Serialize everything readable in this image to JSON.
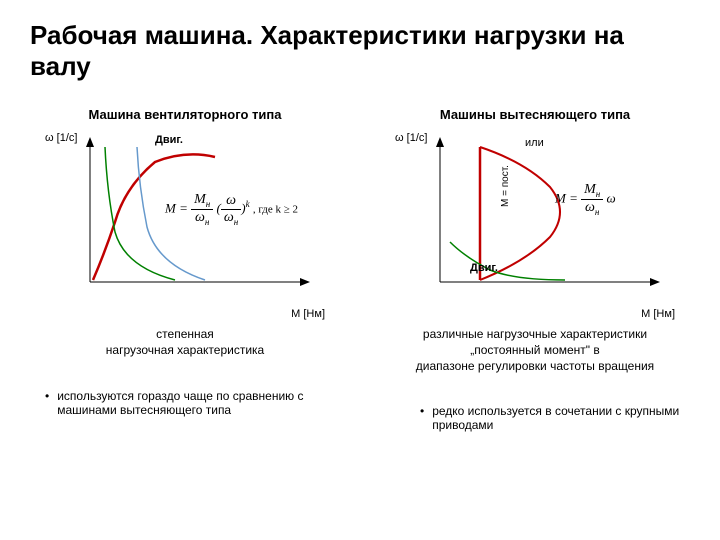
{
  "title": "Рабочая машина. Характеристики нагрузки на валу",
  "left": {
    "header": "Машина вентиляторного типа",
    "yLabel": "ω [1/c]",
    "xLabel": "M [Нм]",
    "motorLabel": "Двиг.",
    "formulaPrefix": "M = ",
    "formulaSuffix": " , где k ≥ 2",
    "caption": "степенная\nнагрузочная характеристика",
    "bullet": "используются гораздо чаще по сравнению с машинами вытесняющего типа",
    "chart": {
      "colors": {
        "axis": "#000000",
        "load": "#c00000",
        "motor1": "#008000",
        "motor2": "#6699cc"
      },
      "lineWidth": 2
    }
  },
  "right": {
    "header": "Машины вытесняющего типа",
    "yLabel": "ω [1/c]",
    "xLabel": "M [Нм]",
    "motorLabel": "Двиг.",
    "ili": "или",
    "mconst": "M = пост.",
    "caption": "различные нагрузочные характеристики\n„постоянный момент\" в\nдиапазоне регулировки частоты вращения",
    "bullet": "редко используется в сочетании с крупными приводами",
    "chart": {
      "colors": {
        "axis": "#000000",
        "load1": "#c00000",
        "load2": "#c00000",
        "motor": "#008000"
      },
      "lineWidth": 2
    }
  }
}
